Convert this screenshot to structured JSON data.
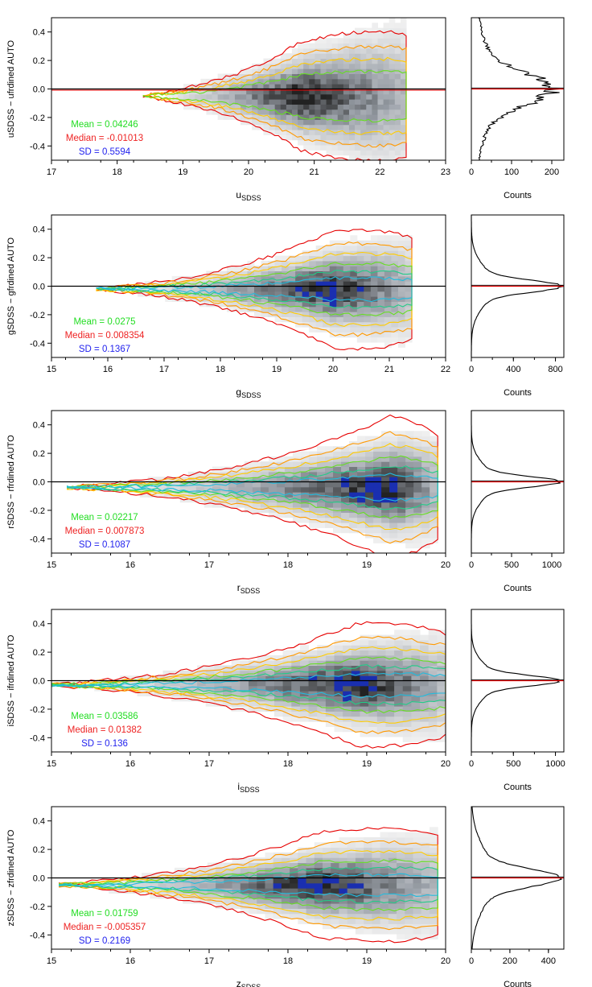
{
  "colors": {
    "mean": "#22dd22",
    "median": "#ee2222",
    "sd": "#2222ee",
    "zero_line": "#000000",
    "hist_line": "#000000",
    "contour_outer": "#e60000",
    "contour_2": "#ff9900",
    "contour_3": "#ffcc00",
    "contour_4": "#66dd22",
    "contour_5": "#22cc88",
    "contour_inner": "#22bbdd",
    "density_mid": "#9aa0a8",
    "density_high": "#222222",
    "density_peak": "#1a2fb0"
  },
  "chart_data": [
    {
      "type": "heatmap",
      "band": "u",
      "x_label_main": "u",
      "x_label_sub": "SDSS",
      "y_label": "uSDSS − ufrdined AUTO",
      "xlim": [
        17,
        23
      ],
      "ylim": [
        -0.5,
        0.5
      ],
      "x_ticks": [
        "17",
        "18",
        "19",
        "20",
        "21",
        "22",
        "23"
      ],
      "y_ticks": [
        "0.4",
        "0.2",
        "0.0",
        "-0.2",
        "-0.4"
      ],
      "density_center_x": 20.8,
      "density_center_y": -0.05,
      "x_extent": [
        18.4,
        22.4
      ],
      "mean": "Mean = 0.04246",
      "median": "Median = -0.01013",
      "sd": "SD = 0.5594",
      "histogram": {
        "xlim": [
          0,
          230
        ],
        "x_ticks": [
          "0",
          "100",
          "200"
        ],
        "x_tick_values": [
          0,
          100,
          200
        ],
        "xlabel": "Counts",
        "peak_count": 200,
        "sigma": 0.11
      }
    },
    {
      "type": "heatmap",
      "band": "g",
      "x_label_main": "g",
      "x_label_sub": "SDSS",
      "y_label": "gSDSS − gfrdined AUTO",
      "xlim": [
        15,
        22
      ],
      "ylim": [
        -0.5,
        0.5
      ],
      "x_ticks": [
        "15",
        "16",
        "17",
        "18",
        "19",
        "20",
        "21",
        "22"
      ],
      "y_ticks": [
        "0.4",
        "0.2",
        "0.0",
        "-0.2",
        "-0.4"
      ],
      "density_center_x": 20.0,
      "density_center_y": -0.02,
      "x_extent": [
        15.8,
        21.4
      ],
      "mean": "Mean = 0.0275",
      "median": "Median = 0.008354",
      "sd": "SD = 0.1367",
      "histogram": {
        "xlim": [
          0,
          880
        ],
        "x_ticks": [
          "0",
          "400",
          "800"
        ],
        "x_tick_values": [
          0,
          400,
          800
        ],
        "xlabel": "Counts",
        "peak_count": 860,
        "sigma": 0.04
      }
    },
    {
      "type": "heatmap",
      "band": "r",
      "x_label_main": "r",
      "x_label_sub": "SDSS",
      "y_label": "rSDSS − rfrdined AUTO",
      "xlim": [
        15,
        20
      ],
      "ylim": [
        -0.5,
        0.5
      ],
      "x_ticks": [
        "15",
        "16",
        "17",
        "18",
        "19",
        "20"
      ],
      "y_ticks": [
        "0.4",
        "0.2",
        "0.0",
        "-0.2",
        "-0.4"
      ],
      "density_center_x": 19.3,
      "density_center_y": -0.04,
      "x_extent": [
        15.2,
        19.9
      ],
      "mean": "Mean = 0.02217",
      "median": "Median = 0.007873",
      "sd": "SD = 0.1087",
      "histogram": {
        "xlim": [
          0,
          1150
        ],
        "x_ticks": [
          "0",
          "500",
          "1000"
        ],
        "x_tick_values": [
          0,
          500,
          1000
        ],
        "xlabel": "Counts",
        "peak_count": 1100,
        "sigma": 0.035
      }
    },
    {
      "type": "heatmap",
      "band": "i",
      "x_label_main": "i",
      "x_label_sub": "SDSS",
      "y_label": "iSDSS − ifrdined AUTO",
      "xlim": [
        15,
        20
      ],
      "ylim": [
        -0.5,
        0.5
      ],
      "x_ticks": [
        "15",
        "16",
        "17",
        "18",
        "19",
        "20"
      ],
      "y_ticks": [
        "0.4",
        "0.2",
        "0.0",
        "-0.2",
        "-0.4"
      ],
      "density_center_x": 18.9,
      "density_center_y": -0.03,
      "x_extent": [
        15.0,
        20.0
      ],
      "mean": "Mean = 0.03586",
      "median": "Median = 0.01382",
      "sd": "SD = 0.136",
      "histogram": {
        "xlim": [
          0,
          1100
        ],
        "x_ticks": [
          "0",
          "500",
          "1000"
        ],
        "x_tick_values": [
          0,
          500,
          1000
        ],
        "xlabel": "Counts",
        "peak_count": 1050,
        "sigma": 0.035
      }
    },
    {
      "type": "heatmap",
      "band": "z",
      "x_label_main": "z",
      "x_label_sub": "SDSS",
      "y_label": "zSDSS − zfrdined AUTO",
      "xlim": [
        15,
        20
      ],
      "ylim": [
        -0.5,
        0.5
      ],
      "x_ticks": [
        "15",
        "16",
        "17",
        "18",
        "19",
        "20"
      ],
      "y_ticks": [
        "0.4",
        "0.2",
        "0.0",
        "-0.2",
        "-0.4"
      ],
      "density_center_x": 18.4,
      "density_center_y": -0.05,
      "x_extent": [
        15.1,
        19.9
      ],
      "mean": "Mean = 0.01759",
      "median": "Median = -0.005357",
      "sd": "SD = 0.2169",
      "histogram": {
        "xlim": [
          0,
          480
        ],
        "x_ticks": [
          "0",
          "200",
          "400"
        ],
        "x_tick_values": [
          0,
          200,
          400
        ],
        "xlabel": "Counts",
        "peak_count": 460,
        "sigma": 0.06
      }
    }
  ]
}
